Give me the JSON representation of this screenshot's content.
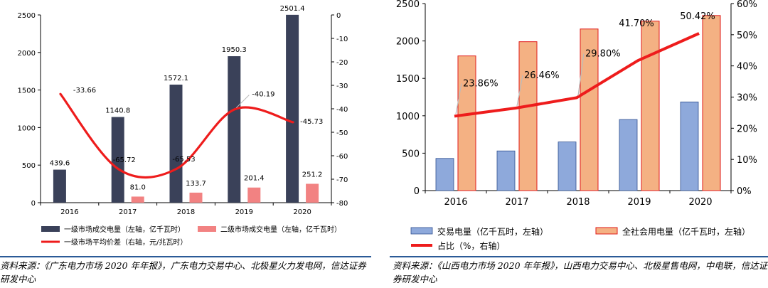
{
  "chart_data": [
    {
      "type": "bar+line",
      "categories": [
        "2016",
        "2017",
        "2018",
        "2019",
        "2020"
      ],
      "series": [
        {
          "name": "一级市场成交电量（左轴，亿千瓦时）",
          "kind": "bar",
          "axis": "left",
          "color": "#3a4159",
          "values": [
            439.6,
            1140.8,
            1572.1,
            1950.3,
            2501.4
          ],
          "labels": [
            "439.6",
            "1140.8",
            "1572.1",
            "1950.3",
            "2501.4"
          ]
        },
        {
          "name": "二级市场成交电量（左轴，亿千瓦时）",
          "kind": "bar",
          "axis": "left",
          "color": "#f28282",
          "values": [
            null,
            81.0,
            133.7,
            201.4,
            251.2
          ],
          "labels": [
            "",
            "81.0",
            "133.7",
            "201.4",
            "251.2"
          ]
        },
        {
          "name": "一级市场平均价差（右轴，元/兆瓦时）",
          "kind": "line",
          "axis": "right",
          "color": "#ee1c1c",
          "values": [
            -33.66,
            -65.72,
            -65.53,
            -40.19,
            -45.73
          ],
          "labels": [
            "-33.66",
            "-65.72",
            "-65.53",
            "-40.19",
            "-45.73"
          ]
        }
      ],
      "y_left": {
        "min": 0,
        "max": 2500,
        "ticks": [
          "0",
          "500",
          "1000",
          "1500",
          "2000",
          "2500"
        ]
      },
      "y_right": {
        "min": -80,
        "max": 0,
        "ticks": [
          "0",
          "-10",
          "-20",
          "-30",
          "-40",
          "-50",
          "-60",
          "-70",
          "-80"
        ]
      },
      "legend_position": "bottom"
    },
    {
      "type": "bar+line",
      "categories": [
        "2016",
        "2017",
        "2018",
        "2019",
        "2020"
      ],
      "series": [
        {
          "name": "交易电量（亿千瓦时，左轴）",
          "kind": "bar",
          "axis": "left",
          "color": "#8ea9db",
          "values": [
            430,
            530,
            650,
            950,
            1185
          ]
        },
        {
          "name": "全社会用电量（亿千瓦时，左轴）",
          "kind": "bar",
          "axis": "left",
          "color": "#f4b183",
          "values": [
            1800,
            1990,
            2160,
            2265,
            2340
          ]
        },
        {
          "name": "占比（%，右轴）",
          "kind": "line",
          "axis": "right",
          "color": "#ee1c1c",
          "values": [
            23.86,
            26.46,
            29.8,
            41.7,
            50.42
          ],
          "labels": [
            "23.86%",
            "26.46%",
            "29.80%",
            "41.70%",
            "50.42%"
          ]
        }
      ],
      "y_left": {
        "min": 0,
        "max": 2500,
        "ticks": [
          "0",
          "500",
          "1000",
          "1500",
          "2000",
          "2500"
        ]
      },
      "y_right": {
        "min": 0,
        "max": 60,
        "ticks": [
          "0%",
          "10%",
          "20%",
          "30%",
          "40%",
          "50%",
          "60%"
        ]
      },
      "legend_position": "bottom"
    }
  ],
  "sources": {
    "left": "资料来源：《广东电力市场 2020 年年报》，广东电力交易中心、北极星火力发电网，信达证券研发中心",
    "right": "资料来源：《山西电力市场 2020 年年报》，山西电力交易中心、北极星售电网，中电联，信达证券研发中心"
  },
  "colors": {
    "rule": "#2b5a97"
  }
}
